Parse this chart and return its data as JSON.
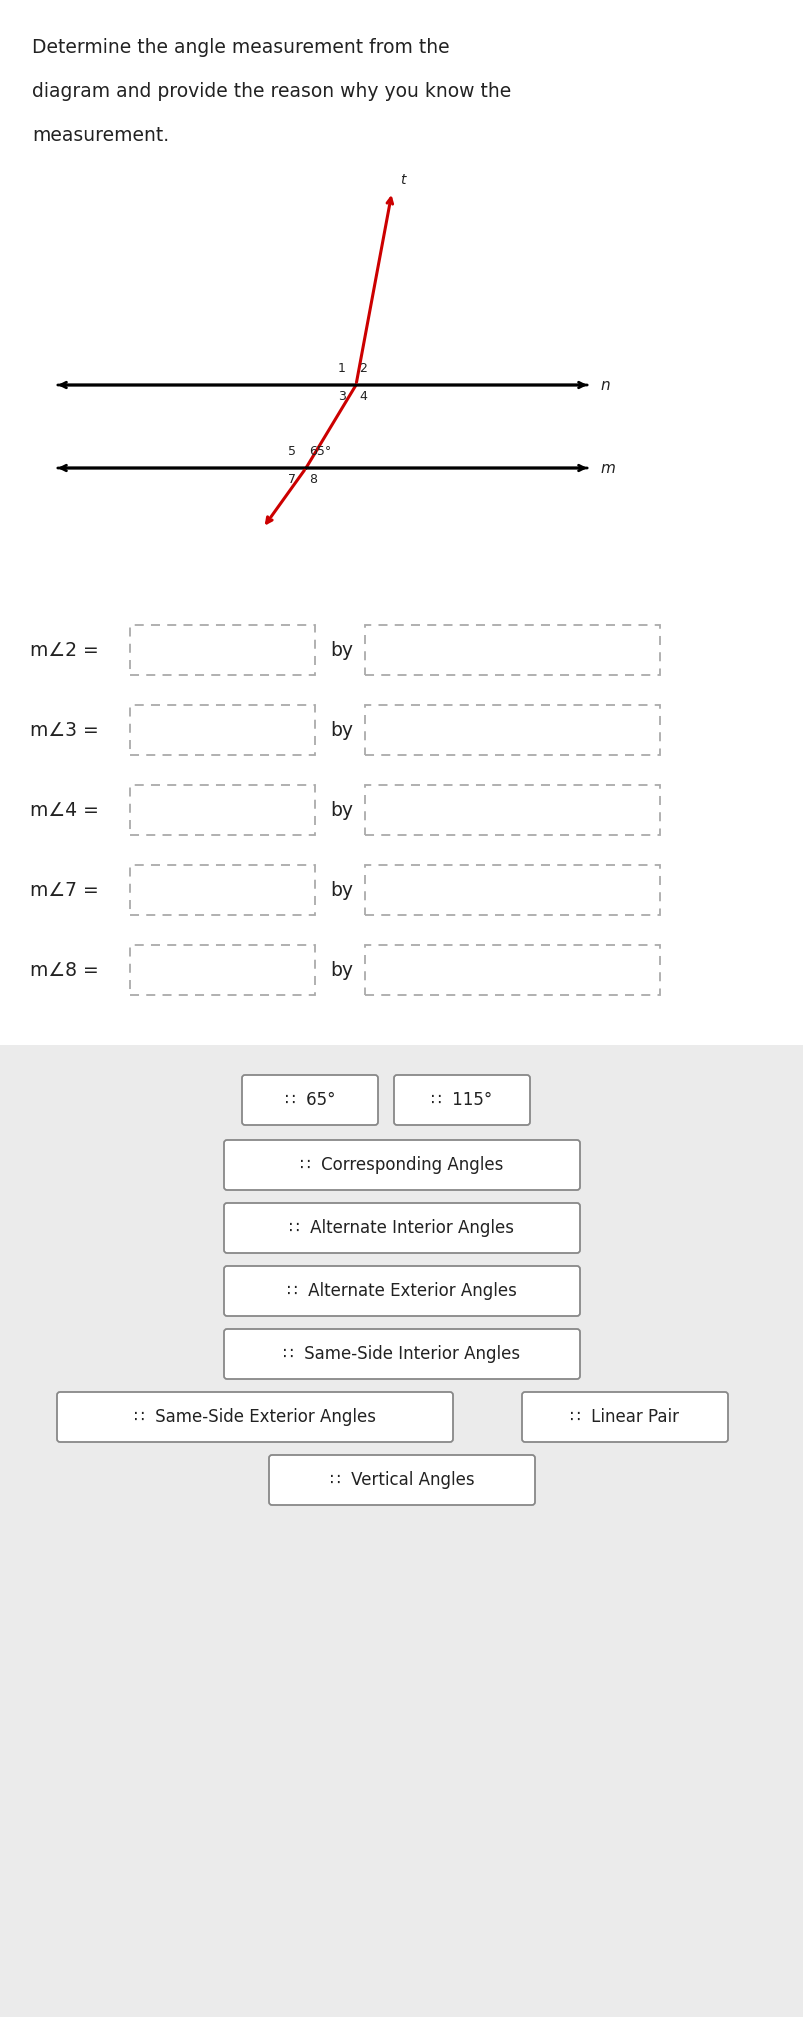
{
  "title_lines": [
    "Determine the angle measurement from the",
    "diagram and provide the reason why you know the",
    "measurement."
  ],
  "white": "#ffffff",
  "dashed_color": "#aaaaaa",
  "text_color": "#222222",
  "red_color": "#cc0000",
  "gray_bg": "#ebebeb",
  "chip_border": "#888888",
  "rows": [
    "m∠2 =",
    "m∠3 =",
    "m∠4 =",
    "m∠7 =",
    "m∠8 ="
  ]
}
